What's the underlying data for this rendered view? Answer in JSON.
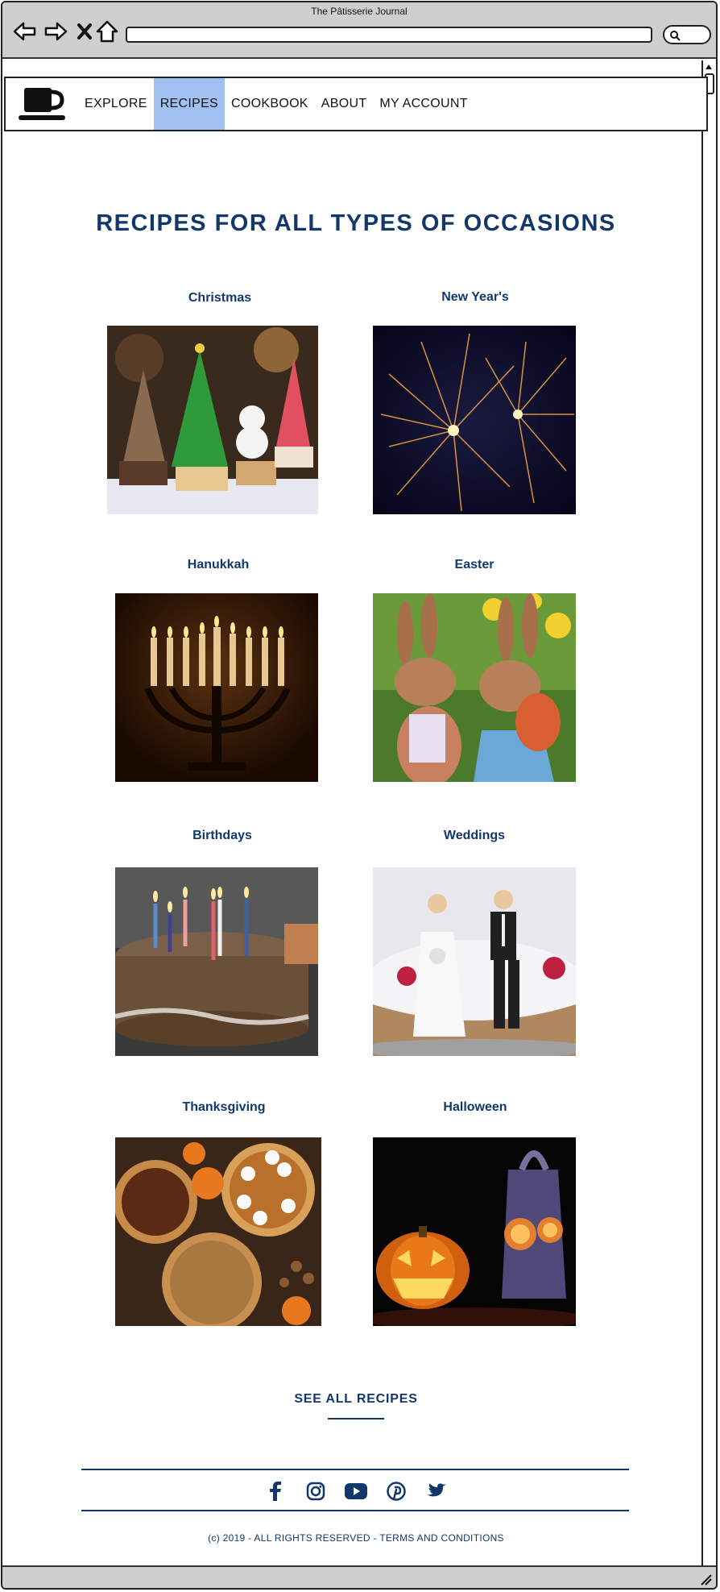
{
  "window": {
    "title": "The Pâtisserie Journal"
  },
  "nav": {
    "items": [
      {
        "label": "EXPLORE",
        "active": false
      },
      {
        "label": "RECIPES",
        "active": true
      },
      {
        "label": "COOKBOOK",
        "active": false
      },
      {
        "label": "ABOUT",
        "active": false
      },
      {
        "label": "MY ACCOUNT",
        "active": false
      }
    ],
    "active_color": "#9fc0f0"
  },
  "main": {
    "title": "RECIPES FOR ALL TYPES OF OCCASIONS",
    "occasions": [
      {
        "label": "Christmas",
        "image": "christmas-cupcakes-image"
      },
      {
        "label": "New Year's",
        "image": "fireworks-image"
      },
      {
        "label": "Hanukkah",
        "image": "menorah-image"
      },
      {
        "label": "Easter",
        "image": "easter-bunnies-image"
      },
      {
        "label": "Birthdays",
        "image": "birthday-cake-image"
      },
      {
        "label": "Weddings",
        "image": "wedding-cake-image"
      },
      {
        "label": "Thanksgiving",
        "image": "thanksgiving-pies-image"
      },
      {
        "label": "Halloween",
        "image": "halloween-pumpkin-image"
      }
    ],
    "see_all": "SEE ALL RECIPES"
  },
  "social": [
    "facebook-icon",
    "instagram-icon",
    "youtube-icon",
    "pinterest-icon",
    "twitter-icon"
  ],
  "footer": {
    "text": "(c) 2019 - ALL RIGHTS RESERVED - TERMS AND CONDITIONS"
  },
  "colors": {
    "brand": "#12386b",
    "chrome": "#cfcfcf"
  }
}
